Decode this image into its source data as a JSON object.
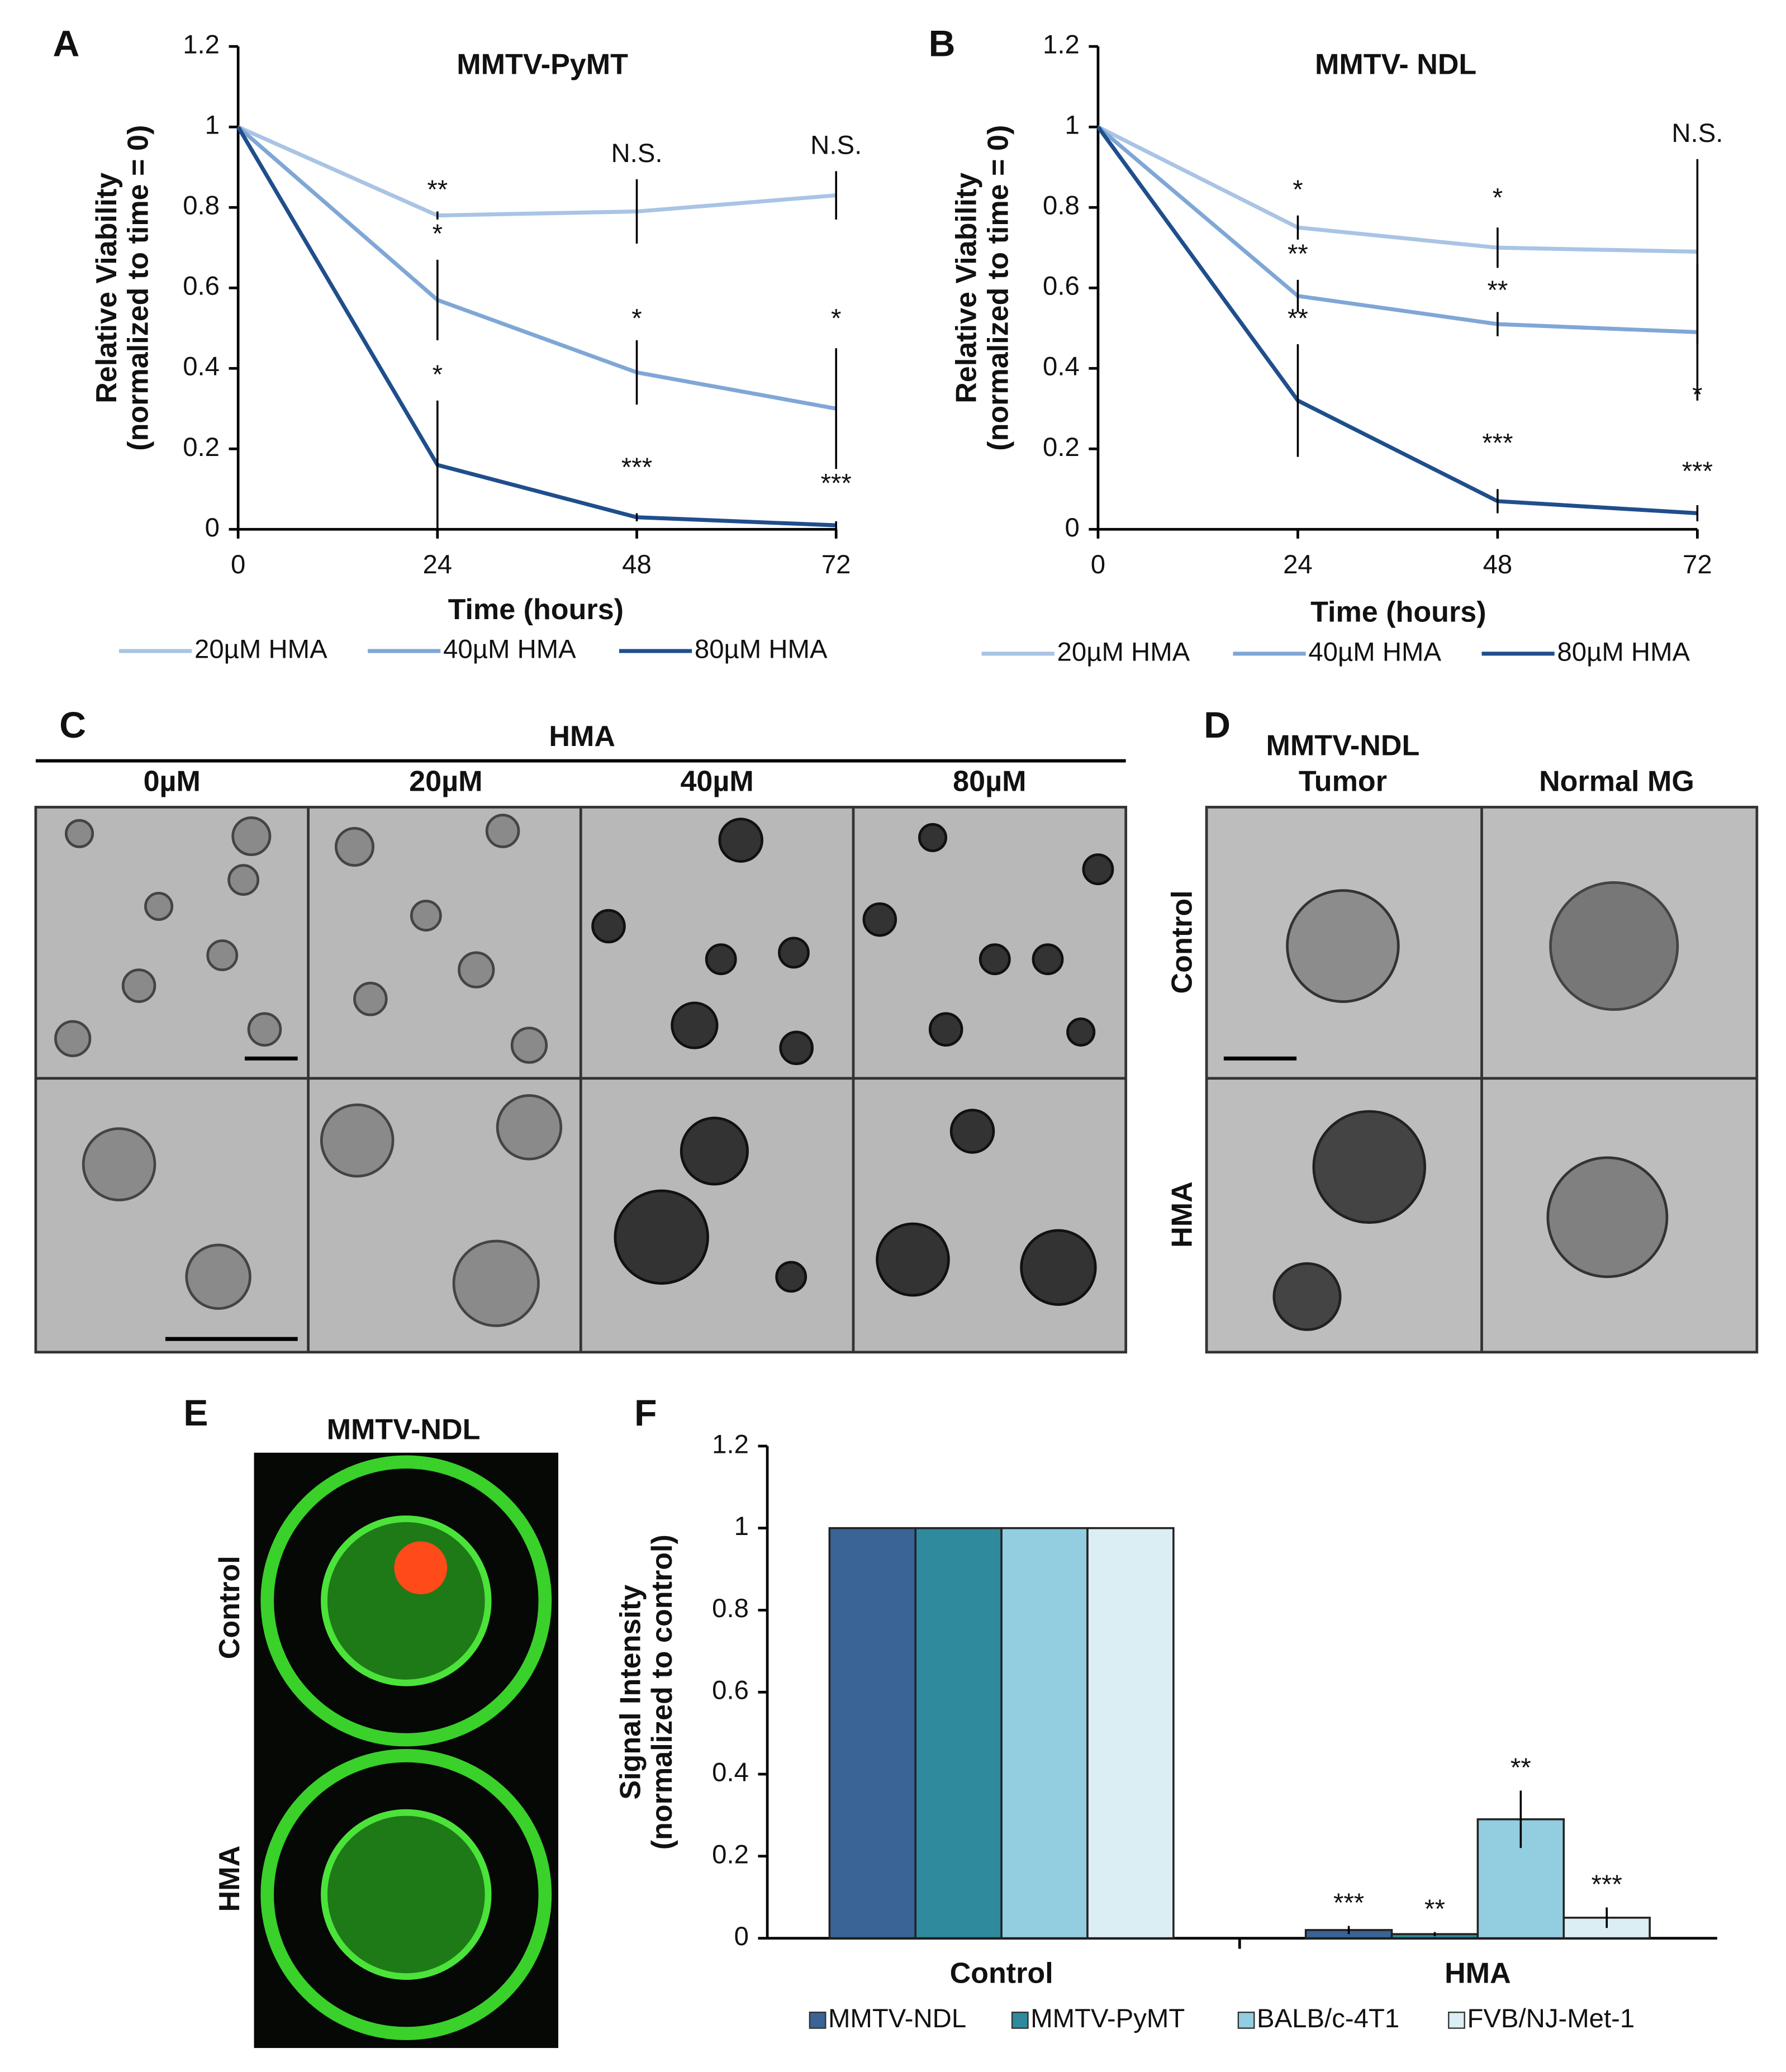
{
  "chart_data": [
    {
      "type": "line",
      "panel": "A",
      "title": "MMTV-PyMT",
      "xlabel": "Time (hours)",
      "ylabel": [
        "Relative Viability",
        "(normalized to time = 0)"
      ],
      "x": [
        0,
        24,
        48,
        72
      ],
      "xlim": [
        0,
        72
      ],
      "xticks": [
        0,
        24,
        48,
        72
      ],
      "ylim": [
        0,
        1.2
      ],
      "yticks": [
        0,
        0.2,
        0.4,
        0.6,
        0.8,
        1,
        1.2
      ],
      "series": [
        {
          "name": "20µM HMA",
          "color": "#a9c4e4",
          "values": [
            1,
            0.78,
            0.79,
            0.83
          ],
          "errors": [
            0,
            0.01,
            0.08,
            0.06
          ]
        },
        {
          "name": "40µM HMA",
          "color": "#7fa7d6",
          "values": [
            1,
            0.57,
            0.39,
            0.3
          ],
          "errors": [
            0,
            0.1,
            0.08,
            0.15
          ]
        },
        {
          "name": "80µM HMA",
          "color": "#1f4e8c",
          "values": [
            1,
            0.16,
            0.03,
            0.01
          ],
          "errors": [
            0,
            0.16,
            0.01,
            0.01
          ]
        }
      ],
      "annotations": [
        "**",
        "*",
        "*",
        "N.S.",
        "*",
        "***",
        "N.S.",
        "*",
        "***"
      ]
    },
    {
      "type": "line",
      "panel": "B",
      "title": "MMTV- NDL",
      "xlabel": "Time (hours)",
      "ylabel": [
        "Relative Viability",
        "(normalized to time = 0)"
      ],
      "x": [
        0,
        24,
        48,
        72
      ],
      "xlim": [
        0,
        72
      ],
      "xticks": [
        0,
        24,
        48,
        72
      ],
      "ylim": [
        0,
        1.2
      ],
      "yticks": [
        0,
        0.2,
        0.4,
        0.6,
        0.8,
        1,
        1.2
      ],
      "series": [
        {
          "name": "20µM HMA",
          "color": "#a9c4e4",
          "values": [
            1,
            0.75,
            0.7,
            0.69
          ],
          "errors": [
            0,
            0.03,
            0.05,
            0.23
          ]
        },
        {
          "name": "40µM HMA",
          "color": "#7fa7d6",
          "values": [
            1,
            0.58,
            0.51,
            0.49
          ],
          "errors": [
            0,
            0.04,
            0.03,
            0.17
          ]
        },
        {
          "name": "80µM HMA",
          "color": "#1f4e8c",
          "values": [
            1,
            0.32,
            0.07,
            0.04
          ],
          "errors": [
            0,
            0.14,
            0.03,
            0.02
          ]
        }
      ],
      "annotations": [
        "*",
        "**",
        "**",
        "*",
        "**",
        "***",
        "N.S.",
        "*",
        "***"
      ]
    },
    {
      "type": "bar",
      "panel": "F",
      "ylabel": [
        "Signal Intensity",
        "(normalized to control)"
      ],
      "categories": [
        "Control",
        "HMA"
      ],
      "ylim": [
        0,
        1.2
      ],
      "yticks": [
        0,
        0.2,
        0.4,
        0.6,
        0.8,
        1,
        1.2
      ],
      "series": [
        {
          "name": "MMTV-NDL",
          "color": "#3a6396",
          "values": [
            1,
            0.02
          ],
          "errors": [
            0,
            0.01
          ],
          "significance": [
            null,
            "***"
          ]
        },
        {
          "name": "MMTV-PyMT",
          "color": "#2e8a9c",
          "values": [
            1,
            0.01
          ],
          "errors": [
            0,
            0.005
          ],
          "significance": [
            null,
            "**"
          ]
        },
        {
          "name": "BALB/c-4T1",
          "color": "#93cde0",
          "values": [
            1,
            0.29
          ],
          "errors": [
            0,
            0.07
          ],
          "significance": [
            null,
            "**"
          ]
        },
        {
          "name": "FVB/NJ-Met-1",
          "color": "#daeef4",
          "values": [
            1,
            0.05
          ],
          "errors": [
            0,
            0.025
          ],
          "significance": [
            null,
            "***"
          ]
        }
      ]
    }
  ],
  "panels": {
    "C": {
      "letter": "C",
      "header": "HMA",
      "columns": [
        "0µM",
        "20µM",
        "40µM",
        "80µM"
      ]
    },
    "D": {
      "letter": "D",
      "columns": [
        [
          "MMTV-NDL",
          "Tumor"
        ],
        "Normal MG"
      ],
      "rows": [
        "Control",
        "HMA"
      ]
    },
    "E": {
      "letter": "E",
      "title": "MMTV-NDL",
      "rows": [
        "Control",
        "HMA"
      ]
    }
  }
}
